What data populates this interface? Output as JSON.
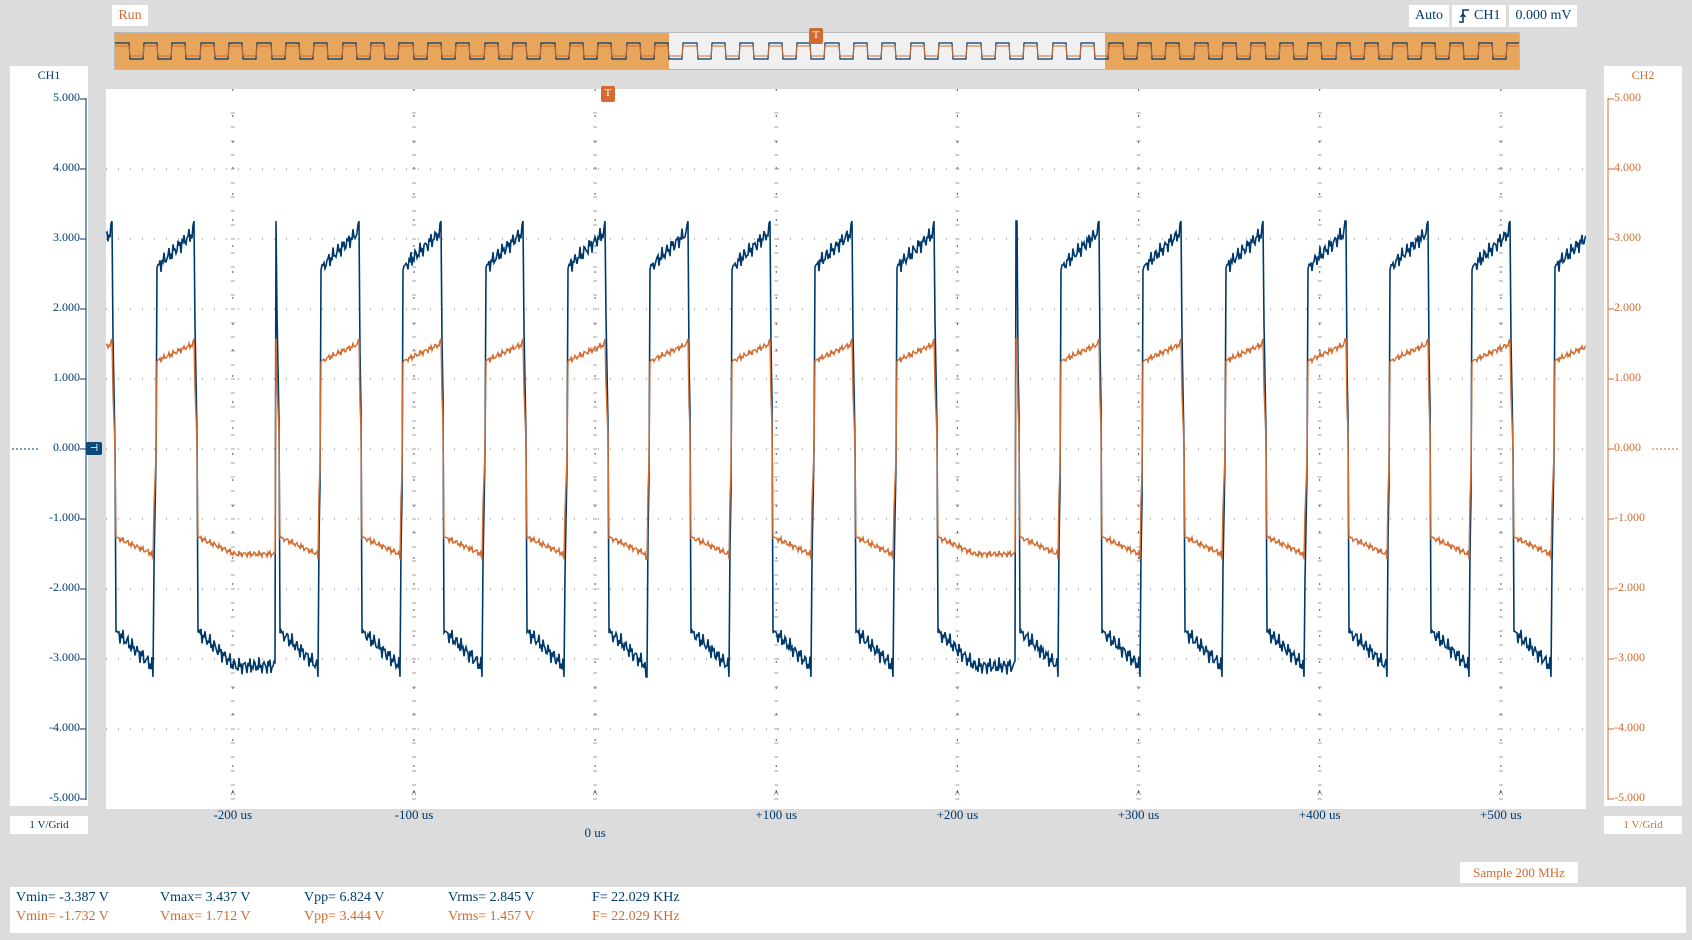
{
  "toolbar": {
    "run_label": "Run",
    "trigger_mode": "Auto",
    "trigger_channel": "CH1",
    "trigger_level": "0.000 mV",
    "trigger_marker": "T"
  },
  "channels": {
    "ch1": {
      "label": "CH1",
      "scale": "1 V/Grid",
      "color": "#003a6c",
      "zero_marker": "-0.000"
    },
    "ch2": {
      "label": "CH2",
      "scale": "1 V/Grid",
      "color": "#d26b2f",
      "zero_marker": "0.000"
    }
  },
  "axes": {
    "y_ticks": [
      "5.000",
      "4.000",
      "3.000",
      "2.000",
      "1.000",
      "0.000",
      "-1.000",
      "-2.000",
      "-3.000",
      "-4.000",
      "-5.000"
    ],
    "x_ticks": [
      "-200 us",
      "-100 us",
      "0 us",
      "+100 us",
      "+200 us",
      "+300 us",
      "+400 us",
      "+500 us"
    ]
  },
  "sample_rate": "Sample 200 MHz",
  "measurements": {
    "ch1": {
      "vmin": "Vmin= -3.387 V",
      "vmax": "Vmax= 3.437 V",
      "vpp": "Vpp= 6.824 V",
      "vrms": "Vrms= 2.845 V",
      "freq": "F= 22.029 KHz"
    },
    "ch2": {
      "vmin": "Vmin= -1.732 V",
      "vmax": "Vmax= 1.712 V",
      "vpp": "Vpp= 3.444 V",
      "vrms": "Vrms= 1.457 V",
      "freq": "F= 22.029 KHz"
    }
  },
  "colors": {
    "ch1": "#003a6c",
    "ch2": "#d26b2f",
    "overview_fill": "#e8a65c"
  }
}
